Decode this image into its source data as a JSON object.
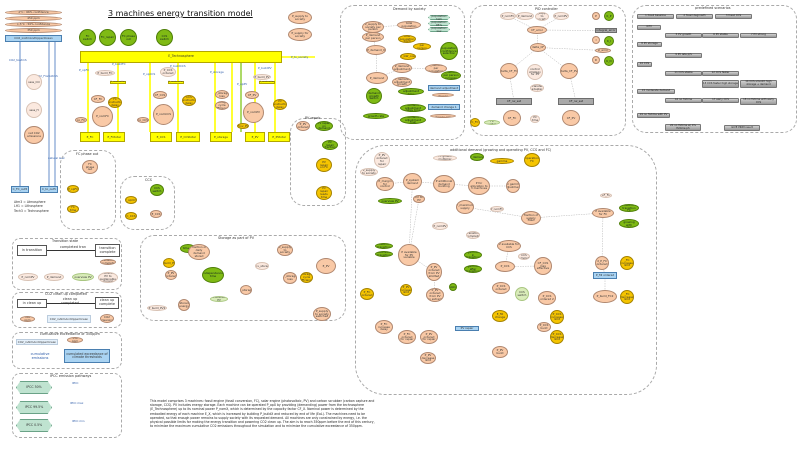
{
  "title": "3 machines energy transition model",
  "colors": {
    "stock_fill": "#f9c9a6",
    "param_green": "#7fba14",
    "param_gold": "#f5c400",
    "technosphere": "#ffff00",
    "co2_box": "#a9d3f2",
    "scenario_button": "#a9a9a9",
    "ipcc_hex": "#bfe3d0"
  },
  "thresholds": [
    "2°C : 66% confidence",
    "450 ppm",
    "1.5°C : 50% confidence",
    "350 ppm"
  ],
  "co2_stock": "CO2_inAtmAndUpperOcean",
  "co2_flows": [
    "CO2_toAtmS",
    "CO2_FromAtmS",
    "natural leak"
  ],
  "co2_out": [
    "C_FC_out5",
    "C_to_out5"
  ],
  "co2_aux": [
    "ssss_CO",
    "ssss_H",
    "net CO2 emissions"
  ],
  "legend_abbrev": [
    "Atm3 = Atmosphere",
    "LH1 = Lithosphere",
    "Tech3 = Technosphere"
  ],
  "switches": [
    "FC switch",
    "FC_repair",
    "FC phase out",
    "CCS switch"
  ],
  "technosphere": "E_Technosphere",
  "main": {
    "flows": [
      "P_opFC",
      "P_buildFC",
      "P_opCCS",
      "P_buildCCS",
      "P_storage",
      "P_opPV",
      "P_buildPV",
      "P_to_society"
    ],
    "supply": [
      "P_supply to society",
      "P_supply for society"
    ],
    "build": [
      "P_build_FC",
      "P_CCS ordered",
      "P_build_PV"
    ],
    "cf": [
      "CF_FC",
      "CF_CCS",
      "CF_PV"
    ],
    "delays": [
      "FC construction delay",
      "CCS construction delay",
      "PV construction delay"
    ],
    "construction": [
      "E_construction",
      "E_construction",
      "E_construction"
    ],
    "nom": [
      "P_nomFC",
      "P_nomCCS",
      "P_nomPV"
    ],
    "machines": [
      "E_FC",
      "E_FCtotal",
      "E_CCS",
      "E_CCStotal",
      "E_storage",
      "E_PV",
      "E_PVtotal"
    ],
    "misc": [
      "co_FC",
      "co_CCS",
      "Einv_PV",
      "P_storage loss",
      "storage cycle efficiency"
    ]
  },
  "groups": {
    "fc_phase": {
      "title": "FC phase out",
      "nodes": [
        "FC phase out",
        "P_opFC",
        "FC time"
      ]
    },
    "ccs": {
      "title": "CCS",
      "nodes": [
        "CCS switch",
        "P_opCCS",
        "C_CCS",
        "E_CCS"
      ]
    },
    "pv_repair": {
      "title": "PV repair",
      "nodes": [
        "P_PV ordered",
        "PV repair on demand",
        "PV repair fraction",
        "PV repair on FC",
        "PV repair leads time"
      ]
    },
    "storage": {
      "title": "Storage as part of PV",
      "nodes": [
        "P_build_PV1",
        "P_PV ordered",
        "time_to",
        "fraction of daily demand stored",
        "independence time",
        "E_storage",
        "Einv_storage",
        "P_storage loss",
        "storage cycle efficiency",
        "overview PV",
        "P_supply to society",
        "P_supply to society switched",
        "E_PV",
        "P_build_PV2",
        "Stored energy"
      ]
    },
    "demand": {
      "title": "Demand by society",
      "nodes": [
        "P_supply to society per person",
        "P_demand per person",
        "total population",
        "population high",
        "population 95%",
        "population low",
        "P_demand_0",
        "total population 2020",
        "P_demand per person 2020",
        "population confidence selection",
        "P_GW_cost",
        "P_demand",
        "P_demand adjustment",
        "P_demand adjustment growth",
        "P_demand per population",
        "P_demand per person increase",
        "demand growth switch",
        "growth rate",
        "demand adjustment time",
        "demand adjustment delay time",
        "demand adjustment final",
        "demand adjustment",
        "demand change",
        "demand change 1",
        "demand change rate"
      ]
    },
    "pid": {
      "title": "PID controller",
      "nodes": [
        "P_nomFC",
        "P_demand",
        "P_supply to society",
        "P_nomPV",
        "P",
        "K_P",
        "CF_error",
        "integral_error",
        "I",
        "K_I",
        "delta_CF",
        "D_error",
        "D",
        "K_D",
        "delta_CF_FC",
        "control strategy for PV",
        "delta_CF_PV",
        "Transfer adapter",
        "CF_rw_set",
        "CF_rw_set",
        "CF_FC",
        "CF_PV",
        "FC switch",
        "PV time",
        "C_FC"
      ]
    },
    "scenarios": {
      "title": "predefined scenarios",
      "buttons": [
        "1 fossil baseline",
        "2 fossil degrowth",
        "3 fossil CCS",
        "4 PV",
        "5 PV growth",
        "6 PV stable",
        "7 PV strong",
        "8 PV storage",
        "9 PV late p/S",
        "10 CCS",
        "11 CCS stable",
        "12 CCS faster",
        "13 CCS faster high storage",
        "14 CCS smooth high storage + demand",
        "15 moderate demand",
        "16 no fixtime",
        "17 early CCS",
        "18 no fixtime with early CCS",
        "19 no fixtime with PV",
        "20 no fixtime w/ 4% fixtime ph",
        "GIVE PRIM result"
      ]
    },
    "additional": {
      "title": "additional demand (growing and operating PV, CCS and FC)",
      "nodes": [
        "P_PV ordered for repair",
        "P_supply to society",
        "P_demand",
        "gamma",
        "operation FC",
        "FC growth multiplier",
        "P_margin for control",
        "P_system demand",
        "P additional demand building",
        "P for allocation to 3 machines",
        "FC gamma adjustment",
        "overview PV",
        "PV to PV",
        "P_maximum supply",
        "P_nomFC",
        "fraction of supply fixed",
        "P_nomPV",
        "transition complete",
        "P available for PV variable",
        "P available for CCS",
        "ratio in transition",
        "ratio after transition",
        "gamma in transition",
        "gamma after transition",
        "P_CCS",
        "CCS complete",
        "CF_CCS max effective",
        "P_PV ordered from PV allotted",
        "alpha",
        "P_PV increase limit",
        "P_PV ordered from PV in extract",
        "CF_FC",
        "P available for FC",
        "ratio in transition FC",
        "ratio for growing with demand",
        "d_P_FC ordered",
        "_FC increase limit",
        "P_fill ordered",
        "P_build_FC2",
        "_FC decrease limit",
        "P_FC ordered",
        "P_FC increase delay",
        "P_FC ordered for repair",
        "P_PV ordered for repair",
        "P_CCS ordered",
        "CCS switch",
        "P_CCS ordered 2",
        "P_CCS increase limit",
        "P_CCS decrease limit",
        "P_PV decrease limit",
        "P_CCS build",
        "P_PV build",
        "PV repair",
        "E_fill change"
      ]
    },
    "transition": {
      "title": "Transition state",
      "stock_a": "in transition",
      "flow": "completed tran",
      "stock_b": "transition complete",
      "nodes": [
        "transition complete",
        "P_nomPV",
        "P_demand",
        "overview PV",
        "overview PV to sustainable storage"
      ]
    },
    "cleanup": {
      "title": "CO2 clean up completed",
      "stock_a": "in clean up",
      "flow": "clean up completed",
      "stock_b": "clean up complete",
      "nodes": [
        "350 ppm",
        "CO2_inAtmAndUpperOcean",
        "CO2 cleaning"
      ]
    },
    "cumulative": {
      "title": "cumulative exceedance of 350ppm",
      "nodes": [
        "CO2_inAtmAndUpperOcean",
        "350 ppm"
      ],
      "flow": "cumulative emissions",
      "stock": "cumulated exceedance of climate thresholds"
    },
    "ipcc": {
      "title": "IPCC emission pathways",
      "items": [
        {
          "stock": "IPCC 50%",
          "flow": "IPCC"
        },
        {
          "stock": "IPCC 99.5%",
          "flow": "IPCC max"
        },
        {
          "stock": "IPCC 0.5%",
          "flow": "IPCC min"
        }
      ]
    }
  },
  "description": "This model comprises 3 machines: fossil engine (fossil conversion, FC), solar engine (photovoltaic, PV) and carbon scrubber (carbon capture and storage, CCS). PV includes energy storage. Each machine can be operated P_opX by providing (demanding) power from the technosphere (E_Technosphere) up to its nominal power P_nomX, which is determined by the capacity factor CF_X. Nominal power is determined by the embodied energy of each machine E_X, which is increased by building P_buildX and reduced by end of life (EoL). The machines need to be operated, so that enough power remains to supply society with its requested demand. All machines are only constrained by energy, i.e. the physical possible limits for making the energy transition and powering CO2 clean up. The aim is to reach 350ppm before the end of this century, to minimize the maximum cumulative CO2 emissions throughout the simulation and to minimize the cumulative exceedance of 350ppm."
}
